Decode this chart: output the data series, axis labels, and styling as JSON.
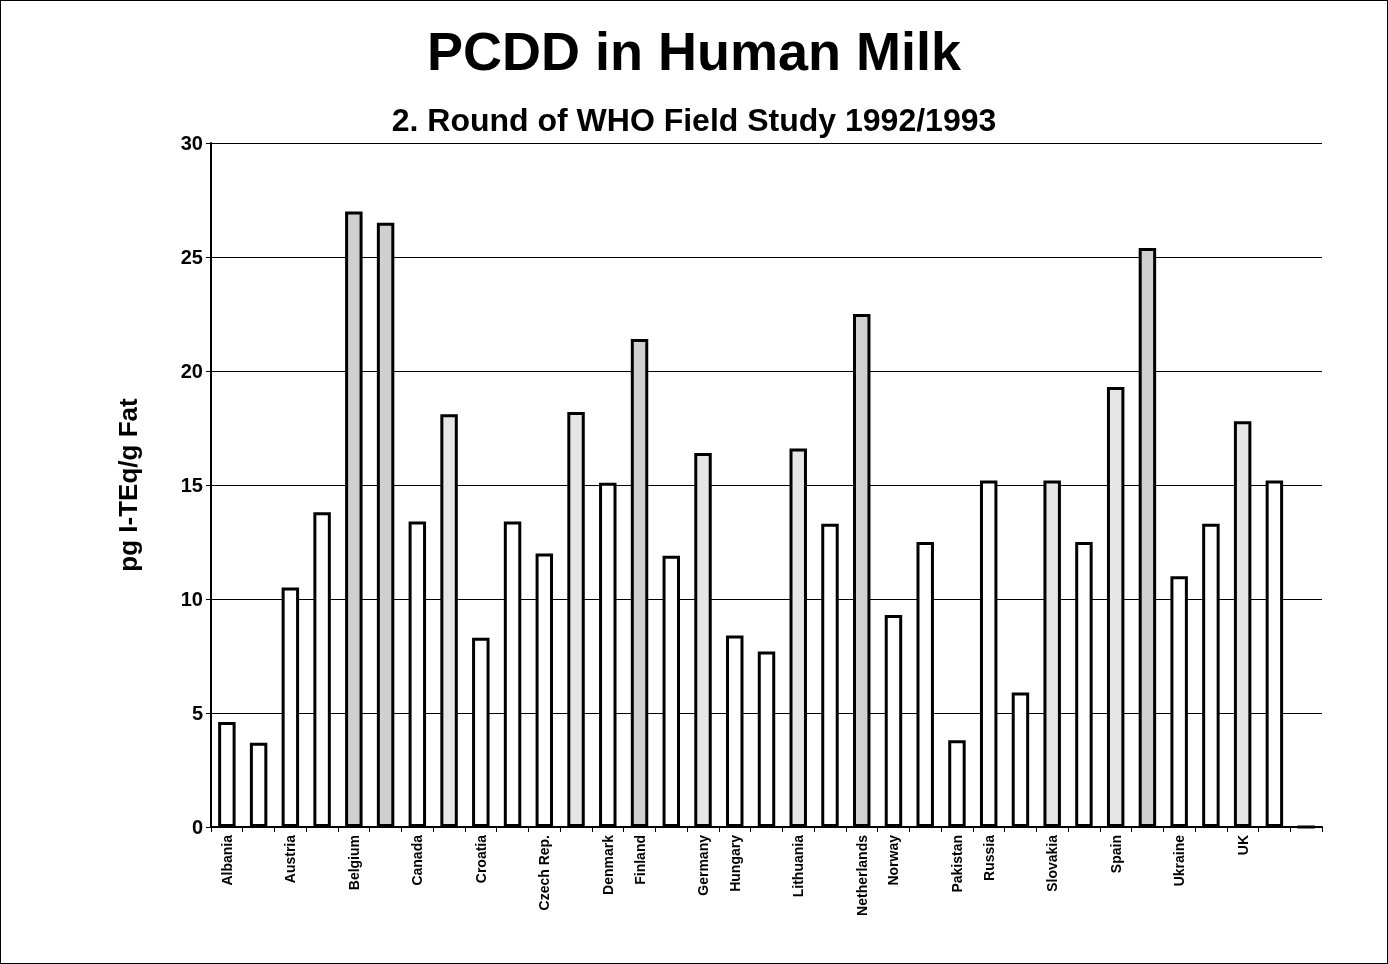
{
  "chart_data": {
    "type": "bar",
    "title": "PCDD in Human Milk",
    "subtitle": "2. Round of WHO Field Study 1992/1993",
    "ylabel": "pg I-TEq/g Fat",
    "categories": [
      "Albania",
      null,
      "Austria",
      null,
      "Belgium",
      null,
      "Canada",
      null,
      "Croatia",
      null,
      "Czech Rep.",
      null,
      "Denmark",
      "Finland",
      null,
      "Germany",
      "Hungary",
      null,
      "Lithuania",
      null,
      "Netherlands",
      "Norway",
      null,
      "Pakistan",
      "Russia",
      null,
      "Slovakia",
      null,
      "Spain",
      null,
      "Ukraine",
      null,
      "UK",
      null,
      null
    ],
    "values": [
      4.6,
      3.7,
      10.5,
      13.8,
      27.0,
      26.5,
      13.4,
      18.1,
      8.3,
      13.4,
      12.0,
      18.2,
      15.1,
      21.4,
      11.9,
      16.4,
      8.4,
      7.7,
      16.6,
      13.3,
      22.5,
      9.3,
      12.5,
      3.8,
      15.2,
      5.9,
      15.2,
      12.5,
      19.3,
      25.4,
      11.0,
      13.3,
      17.8,
      15.2,
      0
    ],
    "colors": [
      "#ffffff",
      "#ffffff",
      "#ffffff",
      "#ffffff",
      "#d0d0d0",
      "#d0d0d0",
      "#ffffff",
      "#e6e6e6",
      "#ffffff",
      "#ffffff",
      "#ffffff",
      "#e6e6e6",
      "#ffffff",
      "#d0d0d0",
      "#ffffff",
      "#e6e6e6",
      "#ffffff",
      "#ffffff",
      "#e6e6e6",
      "#ffffff",
      "#d0d0d0",
      "#ffffff",
      "#ffffff",
      "#ffffff",
      "#ffffff",
      "#ffffff",
      "#e6e6e6",
      "#ffffff",
      "#e6e6e6",
      "#d0d0d0",
      "#ffffff",
      "#ffffff",
      "#e6e6e6",
      "#ffffff",
      "#000000"
    ],
    "ylim": [
      0,
      30
    ],
    "yticks": [
      0,
      5,
      10,
      15,
      20,
      25,
      30
    ],
    "grid": "y"
  }
}
